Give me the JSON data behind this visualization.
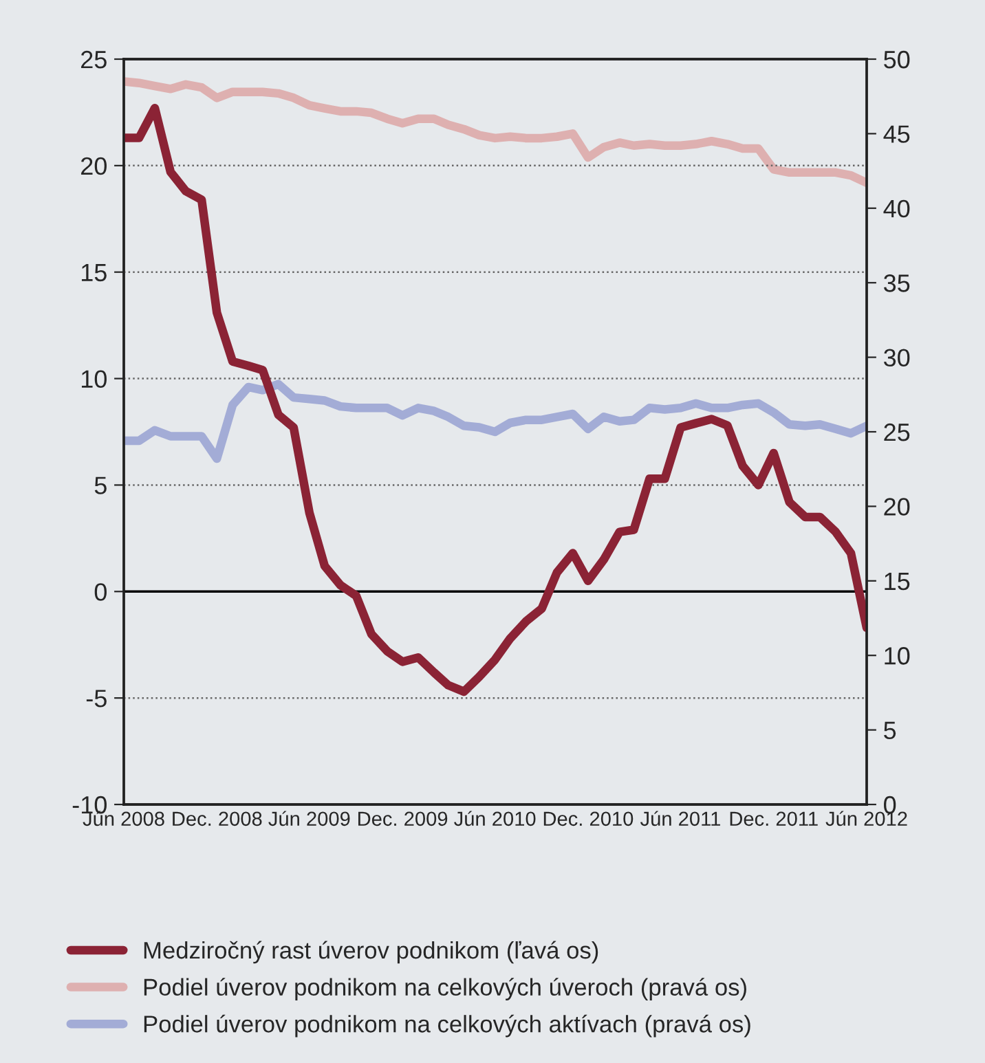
{
  "chart_data": {
    "type": "line",
    "x": [
      "2008-06",
      "2008-07",
      "2008-08",
      "2008-09",
      "2008-10",
      "2008-11",
      "2008-12",
      "2009-01",
      "2009-02",
      "2009-03",
      "2009-04",
      "2009-05",
      "2009-06",
      "2009-07",
      "2009-08",
      "2009-09",
      "2009-10",
      "2009-11",
      "2009-12",
      "2010-01",
      "2010-02",
      "2010-03",
      "2010-04",
      "2010-05",
      "2010-06",
      "2010-07",
      "2010-08",
      "2010-09",
      "2010-10",
      "2010-11",
      "2010-12",
      "2011-01",
      "2011-02",
      "2011-03",
      "2011-04",
      "2011-05",
      "2011-06",
      "2011-07",
      "2011-08",
      "2011-09",
      "2011-10",
      "2011-11",
      "2011-12",
      "2012-01",
      "2012-02",
      "2012-03",
      "2012-04",
      "2012-05",
      "2012-06"
    ],
    "series": [
      {
        "name": "Medziročný rast úverov podnikom (ľavá os)",
        "color": "#8b2335",
        "values": [
          21.3,
          21.3,
          22.7,
          19.7,
          18.8,
          18.4,
          13.1,
          10.8,
          10.6,
          10.4,
          8.3,
          7.7,
          3.7,
          1.2,
          0.3,
          -0.2,
          -2.0,
          -2.8,
          -3.3,
          -3.1,
          -3.8,
          -4.4,
          -4.7,
          -4.0,
          -3.2,
          -2.2,
          -1.4,
          -0.8,
          0.9,
          1.8,
          0.5,
          1.5,
          2.8,
          2.9,
          5.3,
          5.3,
          7.7,
          7.9,
          8.1,
          7.8,
          5.9,
          5.0,
          6.5,
          4.2,
          3.5,
          3.5,
          2.8,
          1.8,
          -1.7
        ]
      },
      {
        "name": "Podiel úverov podnikom na celkových úveroch (pravá os)",
        "color": "#deb0b0",
        "axis": "y2",
        "values": [
          48.5,
          48.4,
          48.2,
          48.0,
          48.3,
          48.1,
          47.4,
          47.8,
          47.8,
          47.8,
          47.7,
          47.4,
          46.9,
          46.7,
          46.5,
          46.5,
          46.4,
          46.0,
          45.7,
          46.0,
          46.0,
          45.6,
          45.3,
          44.9,
          44.7,
          44.8,
          44.7,
          44.7,
          44.8,
          45.0,
          43.4,
          44.1,
          44.4,
          44.2,
          44.3,
          44.2,
          44.2,
          44.3,
          44.5,
          44.3,
          44.0,
          44.0,
          42.6,
          42.4,
          42.4,
          42.4,
          42.4,
          42.2,
          41.7
        ]
      },
      {
        "name": "Podiel úverov podnikom na celkových aktívach (pravá os)",
        "color": "#a3acd6",
        "axis": "y2",
        "values": [
          24.4,
          24.4,
          25.1,
          24.7,
          24.7,
          24.7,
          23.2,
          26.8,
          28.0,
          27.8,
          28.2,
          27.3,
          27.2,
          27.1,
          26.7,
          26.6,
          26.6,
          26.6,
          26.1,
          26.6,
          26.4,
          26.0,
          25.4,
          25.3,
          25.0,
          25.6,
          25.8,
          25.8,
          26.0,
          26.2,
          25.2,
          26.0,
          25.7,
          25.8,
          26.6,
          26.5,
          26.6,
          26.9,
          26.6,
          26.6,
          26.8,
          26.9,
          26.3,
          25.5,
          25.4,
          25.5,
          25.2,
          24.9,
          25.4
        ]
      }
    ],
    "xlim": [
      "2008-06",
      "2012-06"
    ],
    "xticks": [
      {
        "value": "2008-06",
        "label": "Jún 2008"
      },
      {
        "value": "2008-12",
        "label": "Dec. 2008"
      },
      {
        "value": "2009-06",
        "label": "Jún 2009"
      },
      {
        "value": "2009-12",
        "label": "Dec. 2009"
      },
      {
        "value": "2010-06",
        "label": "Jún 2010"
      },
      {
        "value": "2010-12",
        "label": "Dec. 2010"
      },
      {
        "value": "2011-06",
        "label": "Jún 2011"
      },
      {
        "value": "2011-12",
        "label": "Dec. 2011"
      },
      {
        "value": "2012-06",
        "label": "Jún 2012"
      }
    ],
    "ylim": [
      -10,
      25
    ],
    "yticks": [
      -10,
      -5,
      0,
      5,
      10,
      15,
      20,
      25
    ],
    "y2lim": [
      0,
      50
    ],
    "y2ticks": [
      0,
      5,
      10,
      15,
      20,
      25,
      30,
      35,
      40,
      45,
      50
    ],
    "ref_lines": [
      {
        "axis": "y",
        "value": 0,
        "color": "#000000"
      }
    ],
    "grid": "y",
    "legend": "bottom",
    "marker": "none",
    "line_style": "solid"
  }
}
